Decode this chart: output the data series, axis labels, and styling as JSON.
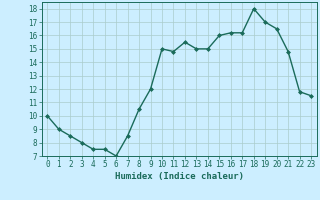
{
  "x": [
    0,
    1,
    2,
    3,
    4,
    5,
    6,
    7,
    8,
    9,
    10,
    11,
    12,
    13,
    14,
    15,
    16,
    17,
    18,
    19,
    20,
    21,
    22,
    23
  ],
  "y": [
    10,
    9,
    8.5,
    8,
    7.5,
    7.5,
    7,
    8.5,
    10.5,
    12,
    15,
    14.8,
    15.5,
    15,
    15,
    16,
    16.2,
    16.2,
    18,
    17,
    16.5,
    14.8,
    11.8,
    11.5
  ],
  "line_color": "#1a6b5a",
  "marker": "D",
  "marker_size": 2,
  "line_width": 1.0,
  "background_color": "#cceeff",
  "grid_color": "#aacccc",
  "xlabel": "Humidex (Indice chaleur)",
  "ylim": [
    7,
    18.5
  ],
  "xlim": [
    -0.5,
    23.5
  ],
  "yticks": [
    7,
    8,
    9,
    10,
    11,
    12,
    13,
    14,
    15,
    16,
    17,
    18
  ],
  "xticks": [
    0,
    1,
    2,
    3,
    4,
    5,
    6,
    7,
    8,
    9,
    10,
    11,
    12,
    13,
    14,
    15,
    16,
    17,
    18,
    19,
    20,
    21,
    22,
    23
  ],
  "tick_fontsize": 5.5,
  "label_fontsize": 6.5,
  "tick_color": "#1a6b5a",
  "label_color": "#1a6b5a"
}
